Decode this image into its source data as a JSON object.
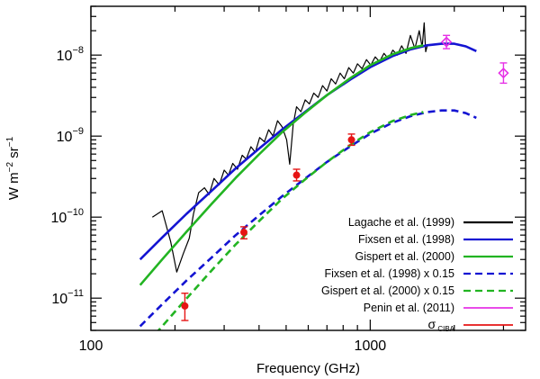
{
  "chart_data": {
    "type": "line",
    "xscale": "log",
    "yscale": "log",
    "xlim": [
      100,
      3600
    ],
    "ylim": [
      4e-12,
      4e-08
    ],
    "xlabel": "Frequency (GHz)",
    "ylabel": "W m^-2 sr^-1",
    "ylabel_parts": {
      "base": "W m",
      "exp1": "−2",
      "mid": " sr",
      "exp2": "−1"
    },
    "x_ticks": [
      {
        "value": 100,
        "label": "100"
      },
      {
        "value": 1000,
        "label": "1000"
      }
    ],
    "y_ticks": [
      {
        "value": 1e-11,
        "base": "10",
        "exp": "−11"
      },
      {
        "value": 1e-10,
        "base": "10",
        "exp": "−10"
      },
      {
        "value": 1e-09,
        "base": "10",
        "exp": "−9"
      },
      {
        "value": 1e-08,
        "base": "10",
        "exp": "−8"
      }
    ],
    "series": [
      {
        "name": "Lagache et al. (1999)",
        "color": "#000000",
        "style": "solid",
        "width": 1.2,
        "points": [
          [
            166,
            1e-10
          ],
          [
            180,
            1.2e-10
          ],
          [
            193,
            5e-11
          ],
          [
            203,
            2.1e-11
          ],
          [
            214,
            3.5e-11
          ],
          [
            225,
            5.5e-11
          ],
          [
            233,
            1.1e-10
          ],
          [
            243,
            2e-10
          ],
          [
            255,
            2.3e-10
          ],
          [
            265,
            1.9e-10
          ],
          [
            276,
            3e-10
          ],
          [
            288,
            2.5e-10
          ],
          [
            300,
            3.8e-10
          ],
          [
            311,
            3.3e-10
          ],
          [
            322,
            4.6e-10
          ],
          [
            335,
            3.9e-10
          ],
          [
            348,
            5.8e-10
          ],
          [
            360,
            5.2e-10
          ],
          [
            374,
            7.4e-10
          ],
          [
            388,
            6.3e-10
          ],
          [
            402,
            9.6e-10
          ],
          [
            418,
            8.5e-10
          ],
          [
            433,
            1.2e-09
          ],
          [
            449,
            1e-09
          ],
          [
            466,
            1.55e-09
          ],
          [
            484,
            1.3e-09
          ],
          [
            502,
            9e-10
          ],
          [
            515,
            4.5e-10
          ],
          [
            530,
            1.4e-09
          ],
          [
            545,
            2.3e-09
          ],
          [
            565,
            2e-09
          ],
          [
            585,
            2.8e-09
          ],
          [
            606,
            2.5e-09
          ],
          [
            628,
            3.4e-09
          ],
          [
            651,
            3e-09
          ],
          [
            675,
            4.2e-09
          ],
          [
            700,
            3.6e-09
          ],
          [
            725,
            5.1e-09
          ],
          [
            752,
            4.4e-09
          ],
          [
            780,
            6e-09
          ],
          [
            808,
            5.1e-09
          ],
          [
            838,
            7e-09
          ],
          [
            870,
            6e-09
          ],
          [
            900,
            7.8e-09
          ],
          [
            935,
            6.8e-09
          ],
          [
            970,
            8.8e-09
          ],
          [
            1005,
            7.5e-09
          ],
          [
            1042,
            9.5e-09
          ],
          [
            1080,
            8.3e-09
          ],
          [
            1120,
            1.05e-08
          ],
          [
            1162,
            9e-09
          ],
          [
            1205,
            1.15e-08
          ],
          [
            1250,
            1e-08
          ],
          [
            1296,
            1.3e-08
          ],
          [
            1343,
            1.05e-08
          ],
          [
            1393,
            1.75e-08
          ],
          [
            1445,
            1.2e-08
          ],
          [
            1498,
            2e-08
          ],
          [
            1535,
            1.25e-08
          ],
          [
            1560,
            2.5e-08
          ],
          [
            1580,
            1.1e-08
          ],
          [
            1600,
            1.3e-08
          ]
        ]
      },
      {
        "name": "Fixsen et al. (1998)",
        "color": "#1414d2",
        "style": "solid",
        "width": 2.6,
        "points": [
          [
            150,
            3e-11
          ],
          [
            180,
            5.6e-11
          ],
          [
            220,
            1.1e-10
          ],
          [
            270,
            2.1e-10
          ],
          [
            330,
            4e-10
          ],
          [
            400,
            7e-10
          ],
          [
            480,
            1.18e-09
          ],
          [
            580,
            1.95e-09
          ],
          [
            700,
            3.2e-09
          ],
          [
            850,
            5e-09
          ],
          [
            1000,
            7.1e-09
          ],
          [
            1200,
            9.7e-09
          ],
          [
            1400,
            1.18e-08
          ],
          [
            1600,
            1.32e-08
          ],
          [
            1800,
            1.38e-08
          ],
          [
            2000,
            1.38e-08
          ],
          [
            2200,
            1.28e-08
          ],
          [
            2400,
            1.12e-08
          ]
        ]
      },
      {
        "name": "Gispert et al. (2000)",
        "color": "#22b422",
        "style": "solid",
        "width": 2.6,
        "points": [
          [
            150,
            1.45e-11
          ],
          [
            180,
            3e-11
          ],
          [
            220,
            6.6e-11
          ],
          [
            270,
            1.45e-10
          ],
          [
            330,
            3.05e-10
          ],
          [
            400,
            5.95e-10
          ],
          [
            480,
            1.09e-09
          ],
          [
            580,
            1.9e-09
          ],
          [
            700,
            3.2e-09
          ],
          [
            850,
            5.2e-09
          ],
          [
            1000,
            7.5e-09
          ],
          [
            1200,
            1.02e-08
          ],
          [
            1400,
            1.22e-08
          ],
          [
            1550,
            1.32e-08
          ]
        ]
      },
      {
        "name": "Fixsen et al. (1998) x 0.15",
        "color": "#1414d2",
        "style": "dashed",
        "width": 2.6,
        "points": [
          [
            150,
            4.5e-12
          ],
          [
            180,
            8.4e-12
          ],
          [
            220,
            1.65e-11
          ],
          [
            270,
            3.15e-11
          ],
          [
            330,
            6e-11
          ],
          [
            400,
            1.05e-10
          ],
          [
            480,
            1.77e-10
          ],
          [
            580,
            2.93e-10
          ],
          [
            700,
            4.8e-10
          ],
          [
            850,
            7.5e-10
          ],
          [
            1000,
            1.07e-09
          ],
          [
            1200,
            1.46e-09
          ],
          [
            1400,
            1.77e-09
          ],
          [
            1600,
            1.98e-09
          ],
          [
            1800,
            2.07e-09
          ],
          [
            2000,
            2.07e-09
          ],
          [
            2200,
            1.92e-09
          ],
          [
            2400,
            1.68e-09
          ]
        ]
      },
      {
        "name": "Gispert et al. (2000) x 0.15",
        "color": "#22b422",
        "style": "dashed",
        "width": 2.6,
        "points": [
          [
            150,
            2.2e-12
          ],
          [
            180,
            4.5e-12
          ],
          [
            220,
            9.9e-12
          ],
          [
            270,
            2.18e-11
          ],
          [
            330,
            4.6e-11
          ],
          [
            400,
            8.9e-11
          ],
          [
            480,
            1.64e-10
          ],
          [
            580,
            2.85e-10
          ],
          [
            700,
            4.8e-10
          ],
          [
            850,
            7.8e-10
          ],
          [
            1000,
            1.12e-09
          ],
          [
            1200,
            1.53e-09
          ],
          [
            1400,
            1.83e-09
          ],
          [
            1550,
            1.98e-09
          ]
        ]
      },
      {
        "name": "Penin et al. (2011)",
        "color": "#e632e6",
        "style": "points",
        "marker": "diamond",
        "points": [
          {
            "x": 1875,
            "y": 1.45e-08,
            "lo": 1.2e-08,
            "hi": 1.75e-08
          },
          {
            "x": 3000,
            "y": 6e-09,
            "lo": 4.5e-09,
            "hi": 8e-09
          }
        ]
      },
      {
        "name": "σ CIBA",
        "legend_symbol": "σ",
        "legend_sub": "CIBA",
        "color": "#e61414",
        "style": "points",
        "marker": "circle",
        "points": [
          {
            "x": 217,
            "y": 8e-12,
            "lo": 5.3e-12,
            "hi": 1.15e-11
          },
          {
            "x": 353,
            "y": 6.5e-11,
            "lo": 5.4e-11,
            "hi": 7.6e-11
          },
          {
            "x": 545,
            "y": 3.3e-10,
            "lo": 2.8e-10,
            "hi": 3.9e-10
          },
          {
            "x": 857,
            "y": 9e-10,
            "lo": 7.7e-10,
            "hi": 1.06e-09
          }
        ]
      }
    ],
    "legend": {
      "placement": "bottom-right"
    }
  }
}
